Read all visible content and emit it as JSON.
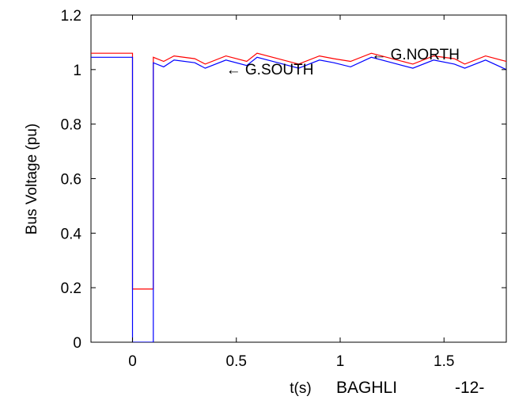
{
  "chart_data": {
    "type": "line",
    "title": "",
    "xlabel": "t(s)",
    "ylabel": "Bus Voltage (pu)",
    "xlim": [
      -0.2,
      1.8
    ],
    "ylim": [
      0,
      1.2
    ],
    "xticks": [
      0,
      0.5,
      1,
      1.5
    ],
    "xtick_labels": [
      "0",
      "0.5",
      "1",
      "1.5"
    ],
    "yticks": [
      0,
      0.2,
      0.4,
      0.6,
      0.8,
      1,
      1.2
    ],
    "ytick_labels": [
      "0",
      "0.2",
      "0.4",
      "0.6",
      "0.8",
      "1",
      "1.2"
    ],
    "grid": false,
    "series": [
      {
        "name": "G.NORTH",
        "color": "#ff0000",
        "prefault": 1.06,
        "fault_start": 0,
        "fault_end": 0.1,
        "fault_value": 0.195,
        "post_points": [
          [
            0.1,
            1.045
          ],
          [
            0.15,
            1.03
          ],
          [
            0.2,
            1.05
          ],
          [
            0.3,
            1.04
          ],
          [
            0.35,
            1.02
          ],
          [
            0.45,
            1.05
          ],
          [
            0.55,
            1.03
          ],
          [
            0.6,
            1.06
          ],
          [
            0.7,
            1.04
          ],
          [
            0.8,
            1.02
          ],
          [
            0.9,
            1.05
          ],
          [
            0.97,
            1.04
          ],
          [
            1.05,
            1.03
          ],
          [
            1.15,
            1.06
          ],
          [
            1.25,
            1.04
          ],
          [
            1.35,
            1.02
          ],
          [
            1.45,
            1.05
          ],
          [
            1.55,
            1.04
          ],
          [
            1.6,
            1.02
          ],
          [
            1.7,
            1.05
          ],
          [
            1.8,
            1.03
          ]
        ]
      },
      {
        "name": "G.SOUTH",
        "color": "#0000ff",
        "prefault": 1.045,
        "fault_start": 0,
        "fault_end": 0.1,
        "fault_value": 0.0,
        "post_points": [
          [
            0.1,
            1.025
          ],
          [
            0.15,
            1.01
          ],
          [
            0.2,
            1.035
          ],
          [
            0.3,
            1.025
          ],
          [
            0.35,
            1.005
          ],
          [
            0.45,
            1.035
          ],
          [
            0.55,
            1.015
          ],
          [
            0.6,
            1.045
          ],
          [
            0.7,
            1.025
          ],
          [
            0.8,
            1.005
          ],
          [
            0.9,
            1.035
          ],
          [
            0.97,
            1.025
          ],
          [
            1.05,
            1.01
          ],
          [
            1.15,
            1.045
          ],
          [
            1.25,
            1.025
          ],
          [
            1.35,
            1.005
          ],
          [
            1.45,
            1.035
          ],
          [
            1.55,
            1.02
          ],
          [
            1.6,
            1.005
          ],
          [
            1.7,
            1.035
          ],
          [
            1.8,
            1.0
          ]
        ]
      }
    ],
    "annotations": [
      {
        "text": "← G.NORTH",
        "x": 1.15,
        "y": 1.055
      },
      {
        "text": "← G.SOUTH",
        "x": 0.45,
        "y": 1.0
      }
    ]
  },
  "footer": {
    "label": "BAGHLI",
    "page": "-12-"
  }
}
